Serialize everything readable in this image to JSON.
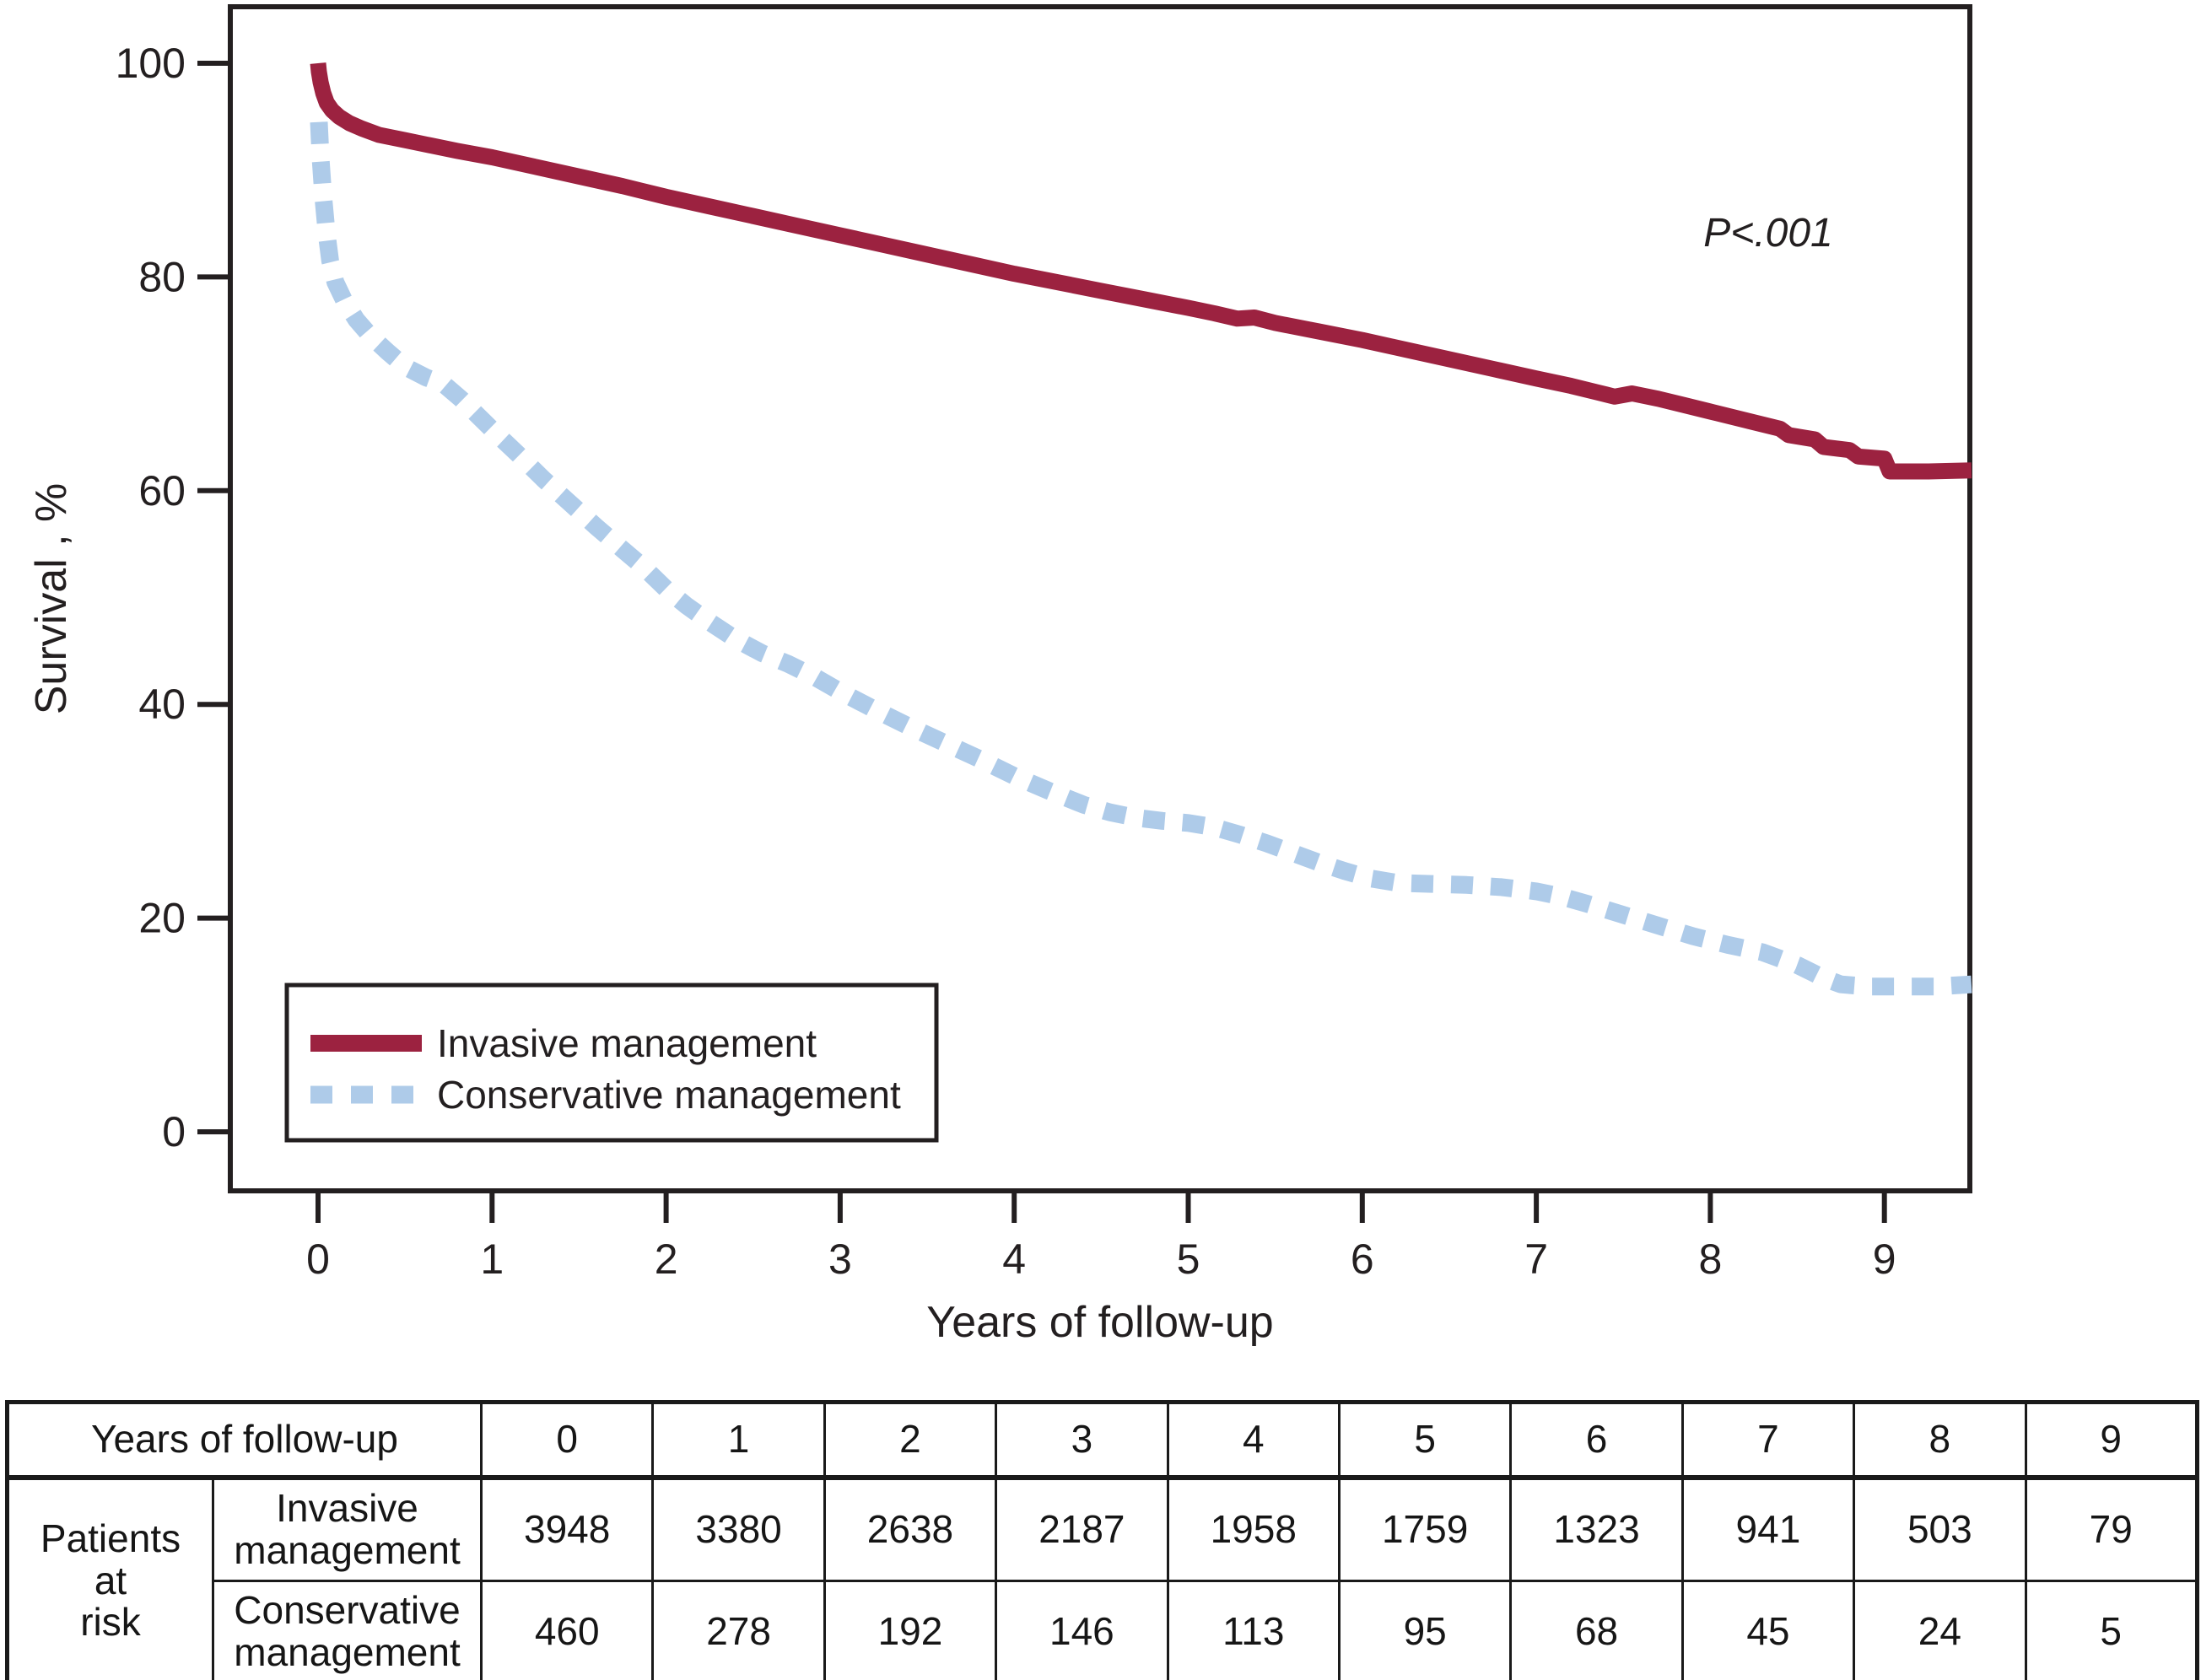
{
  "figure": {
    "p_value_annotation": "P<.001",
    "x_axis_label": "Years of follow-up",
    "y_axis_label": "Survival , %",
    "colors": {
      "invasive": "#9c2240",
      "conservative": "#aecbe9",
      "axis": "#231f20",
      "background": "#ffffff"
    }
  },
  "chart_data": {
    "type": "line",
    "title": "",
    "xlabel": "Years of follow-up",
    "ylabel": "Survival , %",
    "xlim": [
      -0.5,
      9.5
    ],
    "ylim": [
      -5.5,
      105.3
    ],
    "x_ticks": [
      0,
      1,
      2,
      3,
      4,
      5,
      6,
      7,
      8,
      9
    ],
    "y_ticks": [
      0,
      20,
      40,
      60,
      80,
      100
    ],
    "grid": false,
    "legend_position": "lower left",
    "annotation": "P<.001",
    "series": [
      {
        "name": "Invasive management",
        "style": "solid",
        "color": "#9c2240",
        "points": [
          [
            0,
            100
          ],
          [
            0.005,
            99.2
          ],
          [
            0.015,
            98.2
          ],
          [
            0.03,
            97.2
          ],
          [
            0.05,
            96.3
          ],
          [
            0.08,
            95.6
          ],
          [
            0.12,
            95.0
          ],
          [
            0.18,
            94.4
          ],
          [
            0.25,
            93.9
          ],
          [
            0.35,
            93.3
          ],
          [
            0.5,
            92.8
          ],
          [
            0.65,
            92.3
          ],
          [
            0.8,
            91.8
          ],
          [
            1.0,
            91.2
          ],
          [
            1.25,
            90.3
          ],
          [
            1.5,
            89.4
          ],
          [
            1.75,
            88.5
          ],
          [
            2.0,
            87.5
          ],
          [
            2.25,
            86.6
          ],
          [
            2.5,
            85.7
          ],
          [
            2.75,
            84.8
          ],
          [
            3.0,
            83.9
          ],
          [
            3.25,
            83.0
          ],
          [
            3.5,
            82.1
          ],
          [
            3.75,
            81.2
          ],
          [
            4.0,
            80.3
          ],
          [
            4.25,
            79.5
          ],
          [
            4.5,
            78.7
          ],
          [
            4.75,
            77.9
          ],
          [
            5.0,
            77.1
          ],
          [
            5.15,
            76.6
          ],
          [
            5.28,
            76.1
          ],
          [
            5.38,
            76.2
          ],
          [
            5.5,
            75.7
          ],
          [
            5.75,
            74.9
          ],
          [
            6.0,
            74.1
          ],
          [
            6.25,
            73.2
          ],
          [
            6.5,
            72.3
          ],
          [
            6.75,
            71.4
          ],
          [
            7.0,
            70.5
          ],
          [
            7.2,
            69.8
          ],
          [
            7.35,
            69.2
          ],
          [
            7.45,
            68.8
          ],
          [
            7.55,
            69.1
          ],
          [
            7.7,
            68.6
          ],
          [
            7.85,
            68.0
          ],
          [
            8.0,
            67.4
          ],
          [
            8.2,
            66.6
          ],
          [
            8.4,
            65.8
          ],
          [
            8.45,
            65.2
          ],
          [
            8.6,
            64.8
          ],
          [
            8.65,
            64.1
          ],
          [
            8.8,
            63.8
          ],
          [
            8.85,
            63.2
          ],
          [
            9.0,
            63.0
          ],
          [
            9.03,
            61.8
          ],
          [
            9.25,
            61.8
          ],
          [
            9.5,
            61.9
          ]
        ]
      },
      {
        "name": "Conservative management",
        "style": "dashed",
        "color": "#aecbe9",
        "points": [
          [
            0.005,
            94.5
          ],
          [
            0.015,
            91.0
          ],
          [
            0.03,
            87.5
          ],
          [
            0.05,
            84.0
          ],
          [
            0.07,
            81.5
          ],
          [
            0.1,
            79.5
          ],
          [
            0.15,
            77.8
          ],
          [
            0.22,
            76.0
          ],
          [
            0.3,
            74.5
          ],
          [
            0.4,
            73.0
          ],
          [
            0.5,
            71.6
          ],
          [
            0.62,
            70.6
          ],
          [
            0.72,
            70.0
          ],
          [
            0.82,
            68.6
          ],
          [
            0.92,
            67.0
          ],
          [
            1.02,
            65.4
          ],
          [
            1.15,
            63.4
          ],
          [
            1.3,
            61.0
          ],
          [
            1.45,
            58.8
          ],
          [
            1.6,
            56.6
          ],
          [
            1.75,
            54.5
          ],
          [
            1.88,
            52.7
          ],
          [
            2.0,
            50.8
          ],
          [
            2.12,
            49.2
          ],
          [
            2.25,
            47.7
          ],
          [
            2.4,
            46.1
          ],
          [
            2.55,
            44.8
          ],
          [
            2.7,
            43.8
          ],
          [
            2.85,
            42.6
          ],
          [
            3.0,
            41.2
          ],
          [
            3.2,
            39.5
          ],
          [
            3.4,
            37.9
          ],
          [
            3.6,
            36.4
          ],
          [
            3.8,
            34.9
          ],
          [
            4.0,
            33.3
          ],
          [
            4.2,
            31.9
          ],
          [
            4.4,
            30.6
          ],
          [
            4.55,
            29.9
          ],
          [
            4.7,
            29.4
          ],
          [
            4.85,
            29.1
          ],
          [
            5.0,
            28.9
          ],
          [
            5.15,
            28.5
          ],
          [
            5.3,
            27.8
          ],
          [
            5.45,
            27.0
          ],
          [
            5.6,
            26.1
          ],
          [
            5.75,
            25.2
          ],
          [
            5.9,
            24.4
          ],
          [
            6.05,
            23.7
          ],
          [
            6.2,
            23.3
          ],
          [
            6.4,
            23.2
          ],
          [
            6.6,
            23.1
          ],
          [
            6.8,
            22.9
          ],
          [
            7.0,
            22.5
          ],
          [
            7.15,
            22.0
          ],
          [
            7.3,
            21.3
          ],
          [
            7.5,
            20.3
          ],
          [
            7.7,
            19.3
          ],
          [
            7.9,
            18.3
          ],
          [
            8.1,
            17.5
          ],
          [
            8.3,
            16.8
          ],
          [
            8.5,
            15.6
          ],
          [
            8.65,
            14.4
          ],
          [
            8.75,
            13.8
          ],
          [
            8.9,
            13.6
          ],
          [
            9.1,
            13.6
          ],
          [
            9.3,
            13.6
          ],
          [
            9.5,
            13.8
          ]
        ]
      }
    ]
  },
  "legend": {
    "items": [
      {
        "label": "Invasive management"
      },
      {
        "label": "Conservative management"
      }
    ]
  },
  "risk_table": {
    "corner_label": "Years of follow-up",
    "row_group_label": "Patients\nat\nrisk",
    "years": [
      "0",
      "1",
      "2",
      "3",
      "4",
      "5",
      "6",
      "7",
      "8",
      "9"
    ],
    "rows": [
      {
        "label": "Invasive\nmanagement",
        "values": [
          "3948",
          "3380",
          "2638",
          "2187",
          "1958",
          "1759",
          "1323",
          "941",
          "503",
          "79"
        ]
      },
      {
        "label": "Conservative\nmanagement",
        "values": [
          "460",
          "278",
          "192",
          "146",
          "113",
          "95",
          "68",
          "45",
          "24",
          "5"
        ]
      }
    ]
  }
}
